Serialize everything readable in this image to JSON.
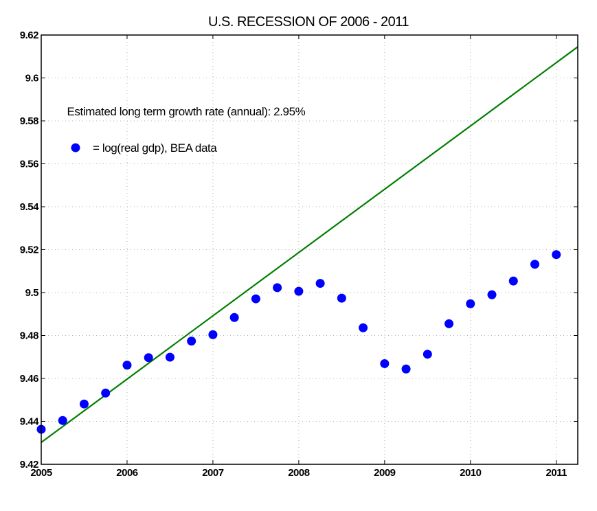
{
  "chart_data": {
    "type": "scatter",
    "title": "U.S. RECESSION OF 2006 - 2011",
    "xlabel": "",
    "ylabel": "",
    "xlim": [
      2005,
      2011.25
    ],
    "ylim": [
      9.42,
      9.62
    ],
    "grid": true,
    "x_ticks": [
      2005,
      2006,
      2007,
      2008,
      2009,
      2010,
      2011
    ],
    "x_tick_labels": [
      "2005",
      "2006",
      "2007",
      "2008",
      "2009",
      "2010",
      "2011"
    ],
    "y_ticks": [
      9.42,
      9.44,
      9.46,
      9.48,
      9.5,
      9.52,
      9.54,
      9.56,
      9.58,
      9.6,
      9.62
    ],
    "y_tick_labels": [
      "9.42",
      "9.44",
      "9.46",
      "9.48",
      "9.5",
      "9.52",
      "9.54",
      "9.56",
      "9.58",
      "9.6",
      "9.62"
    ],
    "annotations": [
      {
        "text": "Estimated long term growth rate (annual): 2.95%",
        "x": 2005.3,
        "y": 9.5845
      },
      {
        "text": "=  log(real gdp), BEA data",
        "x": 2005.6,
        "y": 9.5675
      }
    ],
    "legend_marker": {
      "x": 2005.4,
      "y": 9.5675,
      "color": "#0000ff"
    },
    "series": [
      {
        "name": "log(real gdp), BEA data",
        "kind": "scatter",
        "color": "#0000ff",
        "x": [
          2005.0,
          2005.25,
          2005.5,
          2005.75,
          2006.0,
          2006.25,
          2006.5,
          2006.75,
          2007.0,
          2007.25,
          2007.5,
          2007.75,
          2008.0,
          2008.25,
          2008.5,
          2008.75,
          2009.0,
          2009.25,
          2009.5,
          2009.75,
          2010.0,
          2010.25,
          2010.5,
          2010.75,
          2011.0
        ],
        "y": [
          9.4363,
          9.4404,
          9.4481,
          9.4532,
          9.4662,
          9.4697,
          9.4699,
          9.4774,
          9.4804,
          9.4884,
          9.4971,
          9.5023,
          9.5006,
          9.5043,
          9.4974,
          9.4836,
          9.4669,
          9.4644,
          9.4713,
          9.4855,
          9.4948,
          9.499,
          9.5054,
          9.5132,
          9.5177
        ]
      },
      {
        "name": "Estimated long term growth trend",
        "kind": "line",
        "color": "#007f00",
        "x": [
          2005.0,
          2011.25
        ],
        "y": [
          9.4302,
          9.6145
        ]
      }
    ]
  }
}
